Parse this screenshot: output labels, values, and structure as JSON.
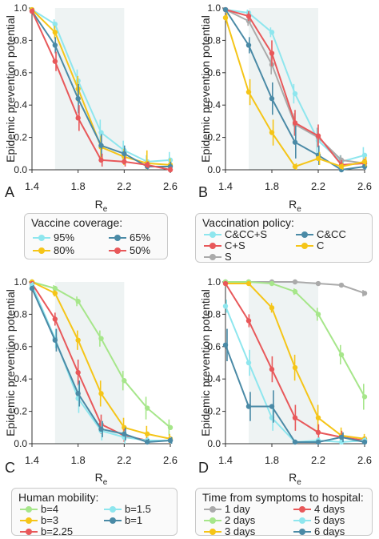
{
  "common": {
    "ylabel": "Epidemic prevention potential",
    "xlabel": "R",
    "xlabel_sub": "e",
    "xticks": [
      "1.4",
      "1.8",
      "2.2",
      "2.6"
    ],
    "yticks": [
      "0.0",
      "0.2",
      "0.4",
      "0.6",
      "0.8",
      "1.0"
    ]
  },
  "panels": [
    {
      "letter": "A"
    },
    {
      "letter": "B"
    },
    {
      "letter": "C"
    },
    {
      "letter": "D"
    }
  ],
  "legends": [
    {
      "title": "Vaccine coverage:",
      "items": [
        {
          "label": "95%",
          "color": "#8ee6ee"
        },
        {
          "label": "65%",
          "color": "#4a8aa6"
        },
        {
          "label": "80%",
          "color": "#f5c518"
        },
        {
          "label": "50%",
          "color": "#e8585a"
        }
      ]
    },
    {
      "title": "Vaccination policy:",
      "items": [
        {
          "label": "C&CC+S",
          "color": "#8ee6ee"
        },
        {
          "label": "C&CC",
          "color": "#4a8aa6"
        },
        {
          "label": "C+S",
          "color": "#e8585a"
        },
        {
          "label": "C",
          "color": "#f5c518"
        },
        {
          "label": "S",
          "color": "#aaaaaa"
        }
      ]
    },
    {
      "title": "Human mobility:",
      "items": [
        {
          "label": "b=4",
          "color": "#a6e68a"
        },
        {
          "label": "b=1.5",
          "color": "#8ee6ee"
        },
        {
          "label": "b=3",
          "color": "#f5c518"
        },
        {
          "label": "b=1",
          "color": "#4a8aa6"
        },
        {
          "label": "b=2.25",
          "color": "#e8585a"
        }
      ]
    },
    {
      "title": "Time from symptoms to hospital:",
      "items": [
        {
          "label": "1 day",
          "color": "#aaaaaa"
        },
        {
          "label": "4 days",
          "color": "#e8585a"
        },
        {
          "label": "2 days",
          "color": "#a6e68a"
        },
        {
          "label": "5 days",
          "color": "#8ee6ee"
        },
        {
          "label": "3 days",
          "color": "#f5c518"
        },
        {
          "label": "6 days",
          "color": "#4a8aa6"
        }
      ]
    }
  ],
  "chart_data": [
    {
      "type": "line",
      "panel": "A",
      "xlim": [
        1.4,
        2.6
      ],
      "ylim": [
        0,
        1
      ],
      "shaded_x": [
        1.6,
        2.2
      ],
      "x": [
        1.4,
        1.6,
        1.8,
        2.0,
        2.2,
        2.4,
        2.6
      ],
      "series": [
        {
          "name": "95%",
          "color": "#8ee6ee",
          "values": [
            0.99,
            0.9,
            0.55,
            0.23,
            0.12,
            0.05,
            0.06
          ],
          "err": [
            0.01,
            0.03,
            0.07,
            0.08,
            0.06,
            0.04,
            0.05
          ]
        },
        {
          "name": "80%",
          "color": "#f5c518",
          "values": [
            0.99,
            0.85,
            0.5,
            0.14,
            0.08,
            0.04,
            0.03
          ],
          "err": [
            0.01,
            0.04,
            0.08,
            0.07,
            0.05,
            0.08,
            0.04
          ]
        },
        {
          "name": "65%",
          "color": "#4a8aa6",
          "values": [
            0.98,
            0.77,
            0.44,
            0.15,
            0.1,
            0.02,
            0.02
          ],
          "err": [
            0.01,
            0.05,
            0.09,
            0.07,
            0.05,
            0.03,
            0.03
          ]
        },
        {
          "name": "50%",
          "color": "#e8585a",
          "values": [
            0.98,
            0.67,
            0.32,
            0.06,
            0.05,
            0.03,
            0.0
          ],
          "err": [
            0.02,
            0.06,
            0.08,
            0.04,
            0.03,
            0.02,
            0.02
          ]
        }
      ]
    },
    {
      "type": "line",
      "panel": "B",
      "xlim": [
        1.4,
        2.6
      ],
      "ylim": [
        0,
        1
      ],
      "shaded_x": [
        1.6,
        2.2
      ],
      "x": [
        1.4,
        1.6,
        1.8,
        2.0,
        2.2,
        2.4,
        2.6
      ],
      "series": [
        {
          "name": "C&CC+S",
          "color": "#8ee6ee",
          "values": [
            0.99,
            0.97,
            0.85,
            0.47,
            0.18,
            0.05,
            0.09
          ],
          "err": [
            0.01,
            0.02,
            0.03,
            0.06,
            0.08,
            0.04,
            0.05
          ]
        },
        {
          "name": "S",
          "color": "#aaaaaa",
          "values": [
            0.99,
            0.92,
            0.65,
            0.28,
            0.2,
            0.06,
            0.04
          ],
          "err": [
            0.01,
            0.03,
            0.06,
            0.07,
            0.06,
            0.03,
            0.03
          ]
        },
        {
          "name": "C+S",
          "color": "#e8585a",
          "values": [
            0.99,
            0.95,
            0.72,
            0.29,
            0.21,
            0.03,
            0.04
          ],
          "err": [
            0.01,
            0.03,
            0.08,
            0.08,
            0.07,
            0.03,
            0.03
          ]
        },
        {
          "name": "C&CC",
          "color": "#4a8aa6",
          "values": [
            0.99,
            0.77,
            0.44,
            0.17,
            0.09,
            0.0,
            0.02
          ],
          "err": [
            0.01,
            0.05,
            0.1,
            0.1,
            0.06,
            0.02,
            0.02
          ]
        },
        {
          "name": "C",
          "color": "#f5c518",
          "values": [
            0.94,
            0.48,
            0.23,
            0.02,
            0.07,
            0.02,
            0.05
          ],
          "err": [
            0.03,
            0.08,
            0.08,
            0.02,
            0.04,
            0.02,
            0.03
          ]
        }
      ]
    },
    {
      "type": "line",
      "panel": "C",
      "xlim": [
        1.4,
        2.6
      ],
      "ylim": [
        0,
        1
      ],
      "shaded_x": [
        1.6,
        2.2
      ],
      "x": [
        1.4,
        1.6,
        1.8,
        2.0,
        2.2,
        2.4,
        2.6
      ],
      "series": [
        {
          "name": "b=4",
          "color": "#a6e68a",
          "values": [
            1.0,
            0.96,
            0.88,
            0.65,
            0.39,
            0.22,
            0.1
          ],
          "err": [
            0.01,
            0.02,
            0.03,
            0.05,
            0.06,
            0.07,
            0.05
          ]
        },
        {
          "name": "b=3",
          "color": "#f5c518",
          "values": [
            1.0,
            0.93,
            0.64,
            0.31,
            0.1,
            0.06,
            0.03
          ],
          "err": [
            0.01,
            0.02,
            0.06,
            0.08,
            0.06,
            0.05,
            0.03
          ]
        },
        {
          "name": "b=2.25",
          "color": "#e8585a",
          "values": [
            0.99,
            0.77,
            0.44,
            0.12,
            0.05,
            0.02,
            0.02
          ],
          "err": [
            0.01,
            0.04,
            0.08,
            0.06,
            0.04,
            0.02,
            0.02
          ]
        },
        {
          "name": "b=1.5",
          "color": "#8ee6ee",
          "values": [
            0.98,
            0.65,
            0.28,
            0.08,
            0.04,
            0.02,
            0.02
          ],
          "err": [
            0.02,
            0.06,
            0.09,
            0.06,
            0.04,
            0.02,
            0.02
          ]
        },
        {
          "name": "b=1",
          "color": "#4a8aa6",
          "values": [
            0.96,
            0.64,
            0.31,
            0.09,
            0.06,
            0.01,
            0.02
          ],
          "err": [
            0.02,
            0.07,
            0.08,
            0.05,
            0.04,
            0.02,
            0.02
          ]
        }
      ]
    },
    {
      "type": "line",
      "panel": "D",
      "xlim": [
        1.4,
        2.6
      ],
      "ylim": [
        0,
        1
      ],
      "shaded_x": [
        1.6,
        2.2
      ],
      "x": [
        1.4,
        1.6,
        1.8,
        2.0,
        2.2,
        2.4,
        2.6
      ],
      "series": [
        {
          "name": "1 day",
          "color": "#aaaaaa",
          "values": [
            1.0,
            1.0,
            1.0,
            1.0,
            0.99,
            0.98,
            0.93
          ],
          "err": [
            0.0,
            0.0,
            0.0,
            0.0,
            0.01,
            0.01,
            0.02
          ]
        },
        {
          "name": "2 days",
          "color": "#a6e68a",
          "values": [
            1.0,
            1.0,
            0.99,
            0.94,
            0.8,
            0.55,
            0.29
          ],
          "err": [
            0.0,
            0.0,
            0.01,
            0.02,
            0.04,
            0.06,
            0.08
          ]
        },
        {
          "name": "3 days",
          "color": "#f5c518",
          "values": [
            0.99,
            0.99,
            0.84,
            0.47,
            0.16,
            0.05,
            0.03
          ],
          "err": [
            0.01,
            0.01,
            0.03,
            0.08,
            0.08,
            0.05,
            0.03
          ]
        },
        {
          "name": "4 days",
          "color": "#e8585a",
          "values": [
            0.99,
            0.76,
            0.46,
            0.16,
            0.07,
            0.04,
            0.02
          ],
          "err": [
            0.01,
            0.04,
            0.08,
            0.08,
            0.05,
            0.04,
            0.02
          ]
        },
        {
          "name": "5 days",
          "color": "#8ee6ee",
          "values": [
            0.85,
            0.5,
            0.16,
            0.01,
            0.02,
            0.01,
            0.02
          ],
          "err": [
            0.04,
            0.08,
            0.08,
            0.01,
            0.02,
            0.01,
            0.02
          ]
        },
        {
          "name": "6 days",
          "color": "#4a8aa6",
          "values": [
            0.61,
            0.23,
            0.23,
            0.01,
            0.01,
            0.04,
            0.01
          ],
          "err": [
            0.1,
            0.09,
            0.1,
            0.01,
            0.01,
            0.03,
            0.01
          ]
        }
      ]
    }
  ]
}
